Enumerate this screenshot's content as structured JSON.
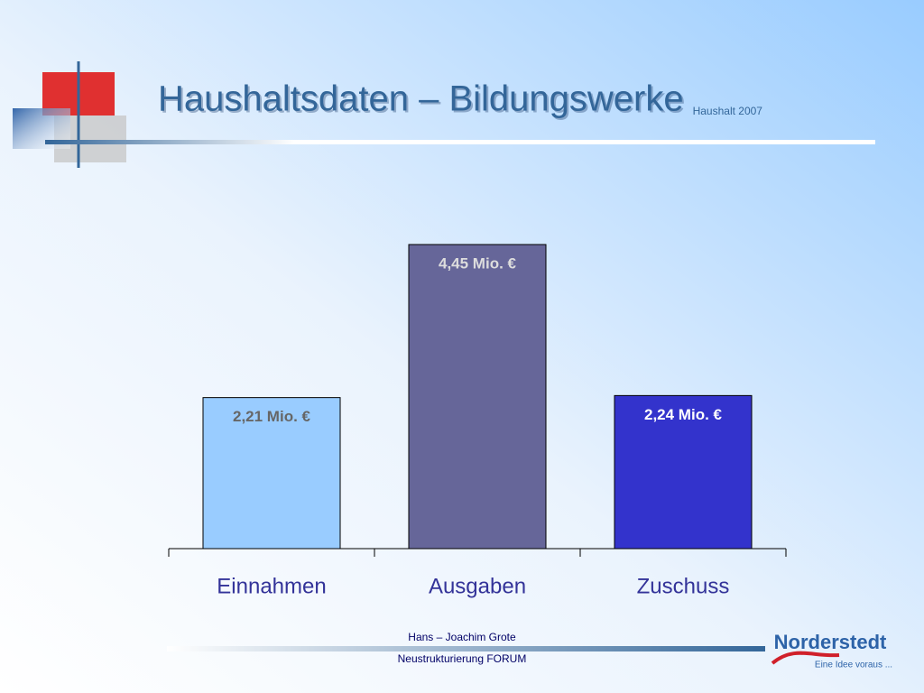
{
  "chart_data": {
    "type": "bar",
    "title": "Haushaltsdaten – Bildungswerke",
    "subtitle": "Haushalt 2007",
    "categories": [
      "Einnahmen",
      "Ausgaben",
      "Zuschuss"
    ],
    "values": [
      2.21,
      4.45,
      2.24
    ],
    "value_labels": [
      "2,21 Mio. €",
      "4,45 Mio. €",
      "2,24 Mio. €"
    ],
    "colors": [
      "#99ccff",
      "#666699",
      "#3333cc"
    ]
  },
  "footer": {
    "author": "Hans – Joachim Grote",
    "event": "Neustrukturierung FORUM"
  },
  "logo": {
    "name": "Norderstedt",
    "slogan": "Eine Idee voraus ..."
  }
}
